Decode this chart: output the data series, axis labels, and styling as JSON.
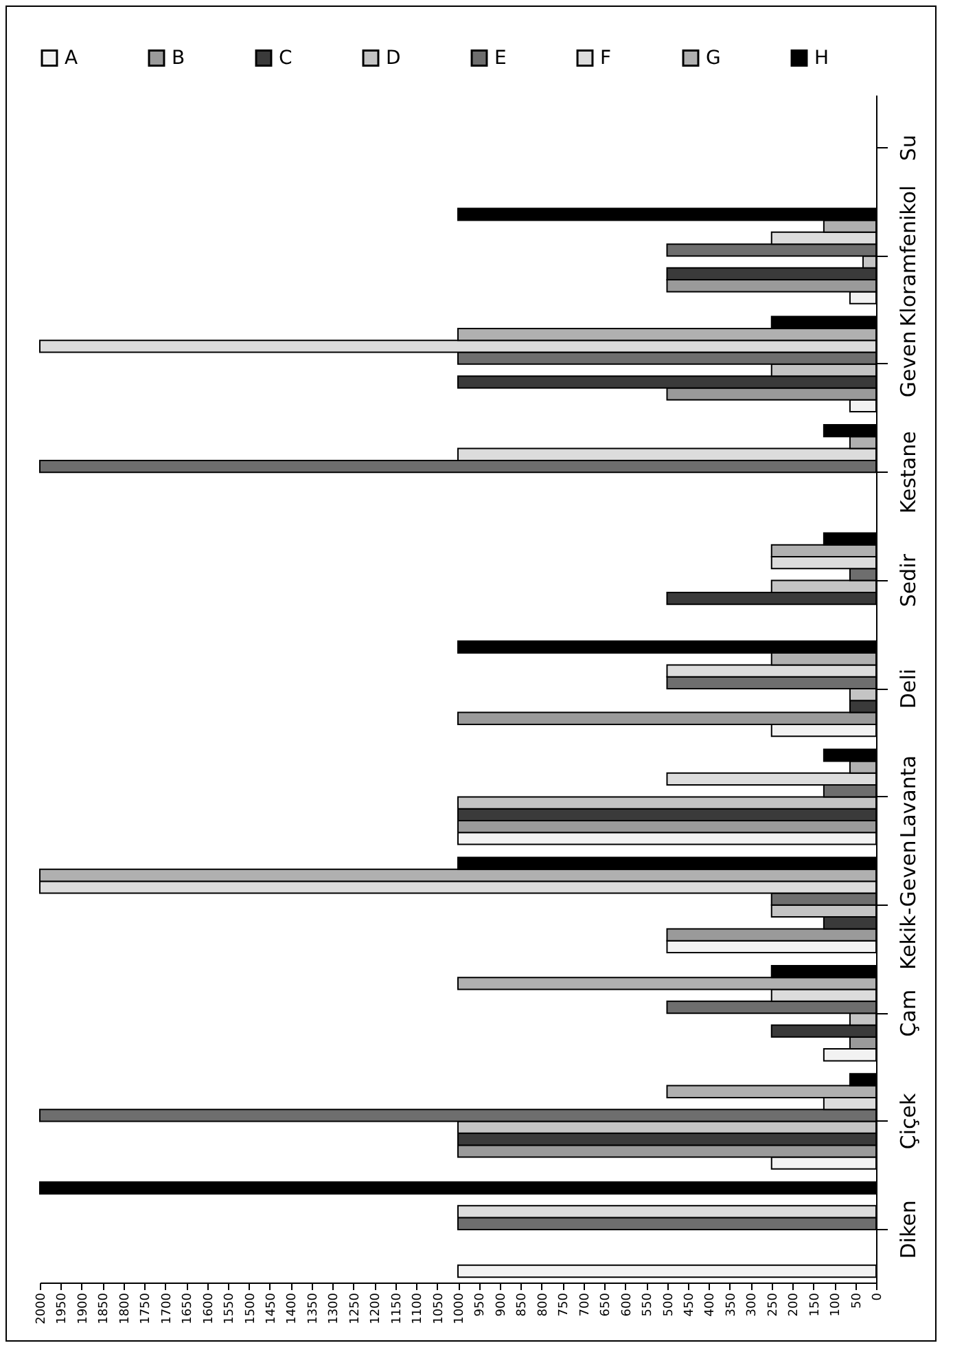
{
  "chart_data": {
    "type": "bar",
    "orientation": "horizontal",
    "categories": [
      "Su",
      "Kloramfenikol",
      "Geven",
      "Kestane",
      "Sedir",
      "Deli",
      "Lavanta",
      "Kekik-Geven",
      "Çam",
      "Çiçek",
      "Diken"
    ],
    "series": [
      {
        "name": "A",
        "color": "#f2f2f2",
        "values": [
          null,
          62.5,
          62.5,
          null,
          null,
          250,
          1000,
          500,
          125,
          250,
          1000
        ]
      },
      {
        "name": "B",
        "color": "#9a9a9a",
        "values": [
          null,
          500,
          500,
          null,
          null,
          1000,
          1000,
          500,
          62.5,
          1000,
          null
        ]
      },
      {
        "name": "C",
        "color": "#3a3a3a",
        "values": [
          null,
          500,
          1000,
          null,
          500,
          62.5,
          1000,
          125,
          250,
          1000,
          null
        ]
      },
      {
        "name": "D",
        "color": "#c4c4c4",
        "values": [
          null,
          31.25,
          250,
          null,
          250,
          62.5,
          1000,
          250,
          62.5,
          1000,
          null
        ]
      },
      {
        "name": "E",
        "color": "#6e6e6e",
        "values": [
          null,
          500,
          1000,
          2000,
          62.5,
          500,
          125,
          250,
          500,
          2000,
          1000
        ]
      },
      {
        "name": "F",
        "color": "#dcdcdc",
        "values": [
          null,
          250,
          2000,
          1000,
          250,
          500,
          500,
          2000,
          250,
          125,
          1000
        ]
      },
      {
        "name": "G",
        "color": "#b0b0b0",
        "values": [
          null,
          125,
          1000,
          62.5,
          250,
          250,
          62.5,
          2000,
          1000,
          500,
          null
        ]
      },
      {
        "name": "H",
        "color": "#000000",
        "values": [
          null,
          1000,
          250,
          125,
          125,
          1000,
          125,
          1000,
          250,
          62.5,
          2000
        ]
      }
    ],
    "xlim": [
      2000,
      0
    ],
    "xticks": [
      2000,
      1950,
      1900,
      1850,
      1800,
      1750,
      1700,
      1650,
      1600,
      1550,
      1500,
      1450,
      1400,
      1350,
      1300,
      1250,
      1200,
      1150,
      1100,
      1050,
      1000,
      950,
      900,
      850,
      800,
      750,
      700,
      650,
      600,
      550,
      500,
      450,
      400,
      350,
      300,
      250,
      200,
      150,
      100,
      50,
      0
    ],
    "legend": "top",
    "grid": false
  }
}
